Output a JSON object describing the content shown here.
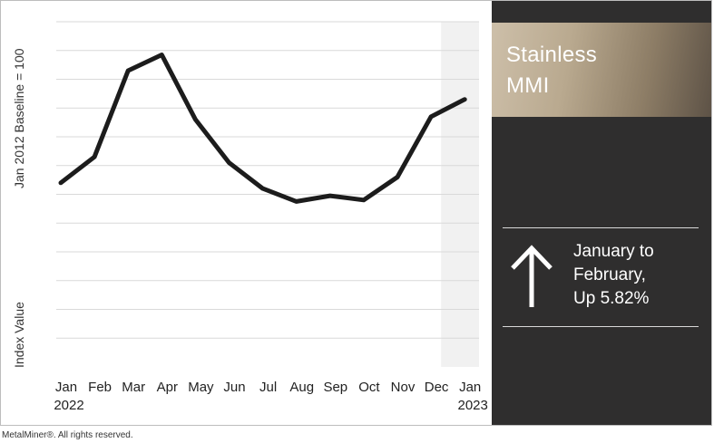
{
  "chart_data": {
    "type": "line",
    "ylabel_top": "Jan 2012 Baseline = 100",
    "ylabel_bottom": "Index Value",
    "categories": [
      "Jan",
      "Feb",
      "Mar",
      "Apr",
      "May",
      "Jun",
      "Jul",
      "Aug",
      "Sep",
      "Oct",
      "Nov",
      "Dec",
      "Jan"
    ],
    "year_labels": [
      "2022",
      "2023"
    ],
    "values": [
      6.4,
      7.3,
      10.3,
      10.85,
      8.6,
      7.1,
      6.2,
      5.75,
      5.95,
      5.8,
      6.6,
      8.7,
      9.3
    ],
    "ylim": [
      0,
      12
    ],
    "grid": true,
    "line_color": "#1c1c1c",
    "shaded_range": [
      "Dec",
      "Jan"
    ]
  },
  "panel": {
    "title_line1": "Stainless",
    "title_line2": "MMI",
    "change_line1": "January to",
    "change_line2": "February,",
    "change_line3": "Up 5.82%",
    "direction_icon": "up-arrow-icon"
  },
  "footer": "MetalMiner®. All rights reserved."
}
